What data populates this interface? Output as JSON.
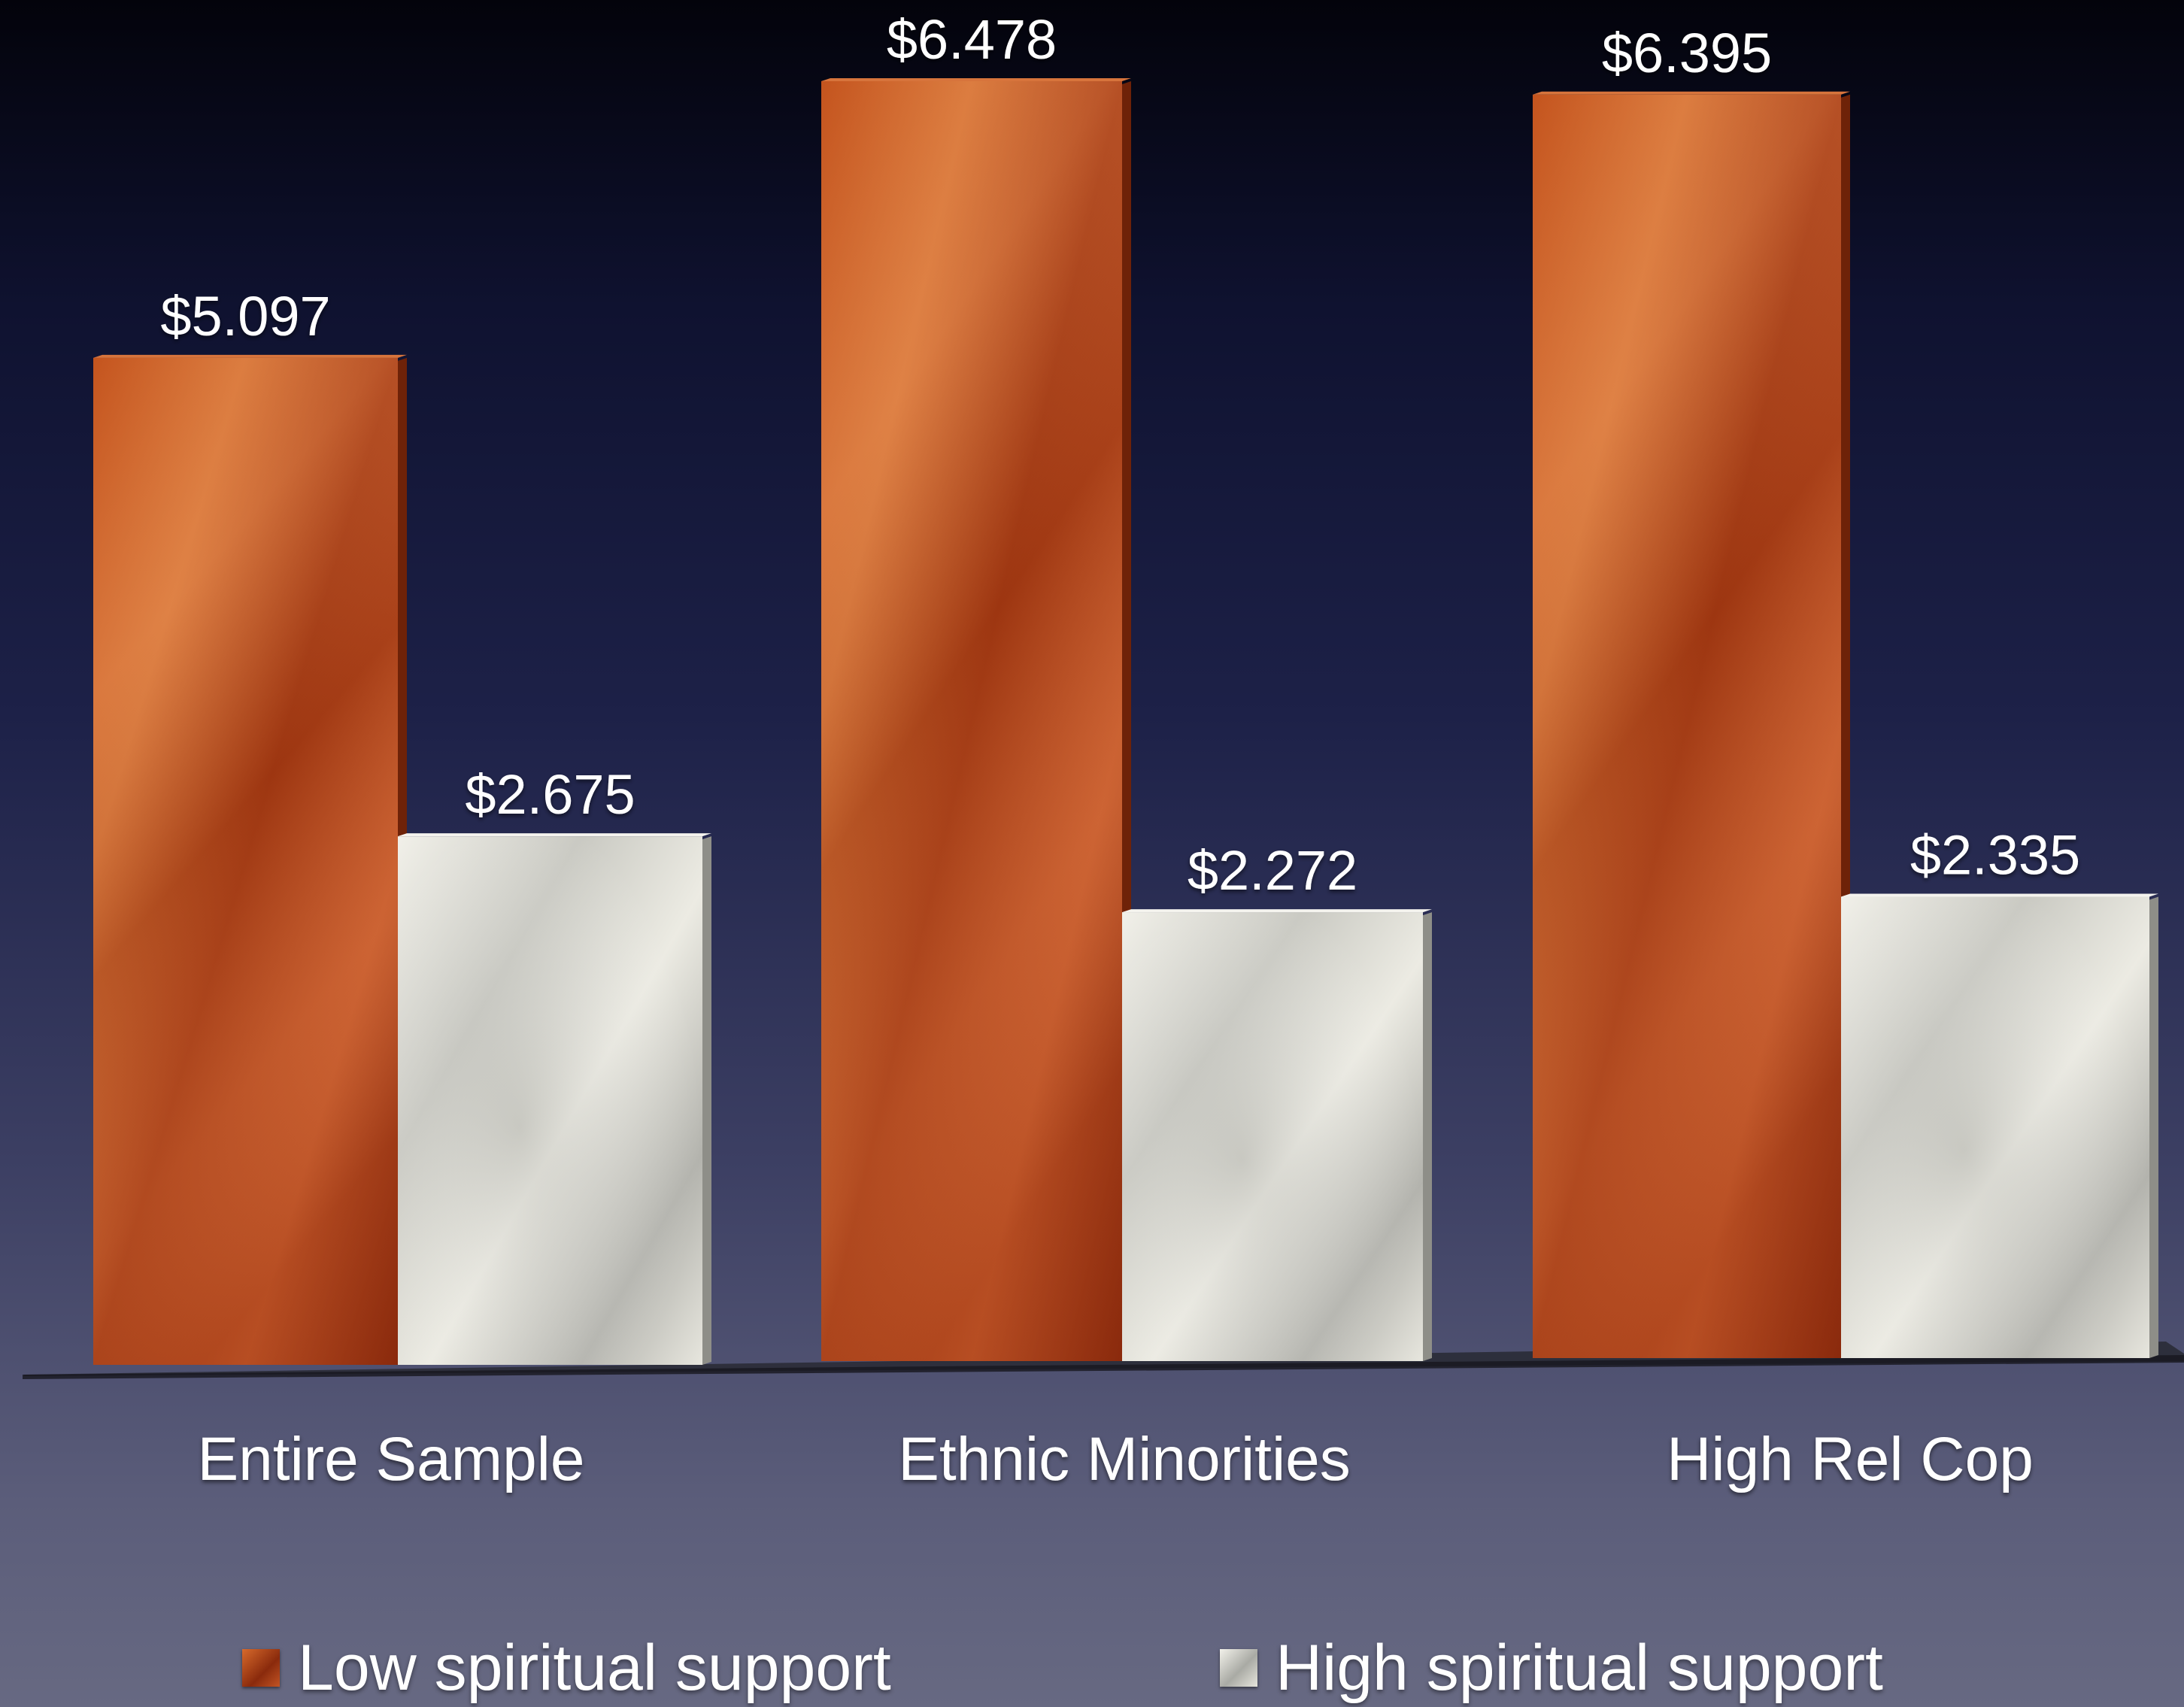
{
  "chart_data": {
    "type": "bar",
    "categories": [
      "Entire Sample",
      "Ethnic Minorities",
      "High Rel Cop"
    ],
    "series": [
      {
        "name": "Low spiritual support",
        "values": [
          5.097,
          6.478,
          6.395
        ],
        "labels": [
          "$5.097",
          "$6.478",
          "$6.395"
        ],
        "color": "#b8481c"
      },
      {
        "name": "High spiritual support",
        "values": [
          2.675,
          2.272,
          2.335
        ],
        "labels": [
          "$2.675",
          "$2.272",
          "$2.335"
        ],
        "color": "#dcdbd3"
      }
    ],
    "ylim": [
      0,
      6.478
    ],
    "grid": false,
    "legend_position": "bottom"
  },
  "legend": {
    "low_label": "Low spiritual support",
    "high_label": "High spiritual support"
  }
}
